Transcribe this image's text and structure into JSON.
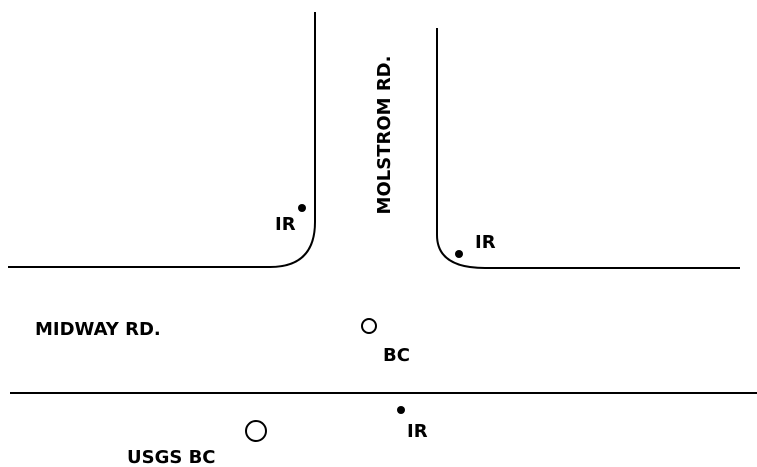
{
  "roads": [
    {
      "label": "MOLSTROM RD."
    },
    {
      "label": "MIDWAY RD."
    }
  ],
  "markers": [
    {
      "label": "IR"
    },
    {
      "label": "IR"
    },
    {
      "label": "BC"
    },
    {
      "label": "IR"
    },
    {
      "label": "USGS BC"
    }
  ]
}
